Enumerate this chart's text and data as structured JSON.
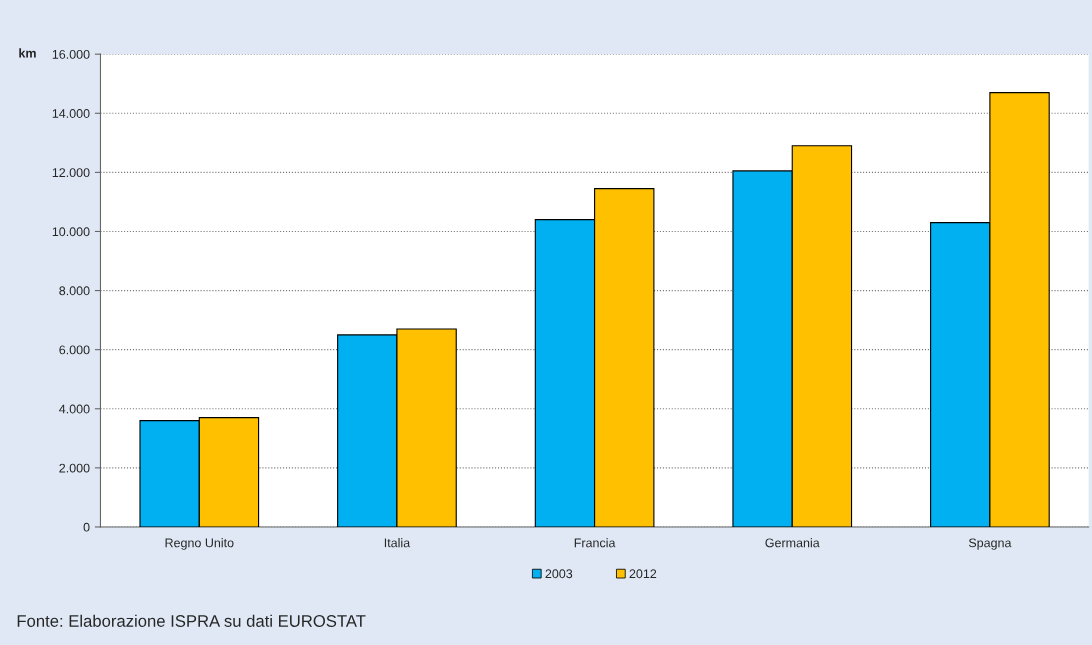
{
  "chart_data": {
    "type": "bar",
    "ylabel": "km",
    "categories": [
      "Regno Unito",
      "Italia",
      "Francia",
      "Germania",
      "Spagna"
    ],
    "series": [
      {
        "name": "2003",
        "color": "#00b0f0",
        "values": [
          3600,
          6500,
          10400,
          12050,
          10300
        ]
      },
      {
        "name": "2012",
        "color": "#ffc000",
        "values": [
          3700,
          6700,
          11450,
          12900,
          14700
        ]
      }
    ],
    "ylim": [
      0,
      16000
    ],
    "yticks": [
      0,
      {
        "value": 2000,
        "label": "2.000"
      },
      {
        "value": 4000,
        "label": "4.000"
      },
      {
        "value": 6000,
        "label": "6.000"
      },
      {
        "value": 8000,
        "label": "8.000"
      },
      {
        "value": 10000,
        "label": "10.000"
      },
      {
        "value": 12000,
        "label": "12.000"
      },
      {
        "value": 14000,
        "label": "14.000"
      },
      {
        "value": 16000,
        "label": "16.000"
      }
    ],
    "grid": "y",
    "legend": "bottom",
    "annotations": [
      "Fonte: Elaborazione ISPRA su dati EUROSTAT"
    ]
  }
}
